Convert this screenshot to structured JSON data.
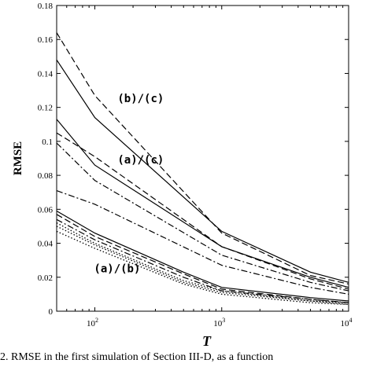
{
  "chart_data": {
    "type": "line",
    "xlabel": "T",
    "ylabel": "RMSE",
    "xscale": "log",
    "xlim": [
      50,
      10000
    ],
    "ylim": [
      0,
      0.18
    ],
    "yticks": [
      "0",
      "0.02",
      "0.04",
      "0.06",
      "0.08",
      "0.1",
      "0.12",
      "0.14",
      "0.16",
      "0.18"
    ],
    "xticks": [
      {
        "value": 100,
        "base": "10",
        "exp": "2"
      },
      {
        "value": 1000,
        "base": "10",
        "exp": "3"
      },
      {
        "value": 10000,
        "base": "10",
        "exp": "4"
      }
    ],
    "grid": false,
    "annotations": [
      {
        "text": "(b)/(c)",
        "x": 230,
        "y": 0.123
      },
      {
        "text": "(a)/(c)",
        "x": 230,
        "y": 0.087
      },
      {
        "text": "(a)/(b)",
        "x": 150,
        "y": 0.023
      }
    ],
    "series": [
      {
        "style": "solid",
        "x": [
          50,
          100,
          1000,
          5000,
          10000
        ],
        "y": [
          0.148,
          0.114,
          0.047,
          0.023,
          0.017
        ]
      },
      {
        "style": "dashed",
        "x": [
          50,
          100,
          1000,
          5000,
          10000
        ],
        "y": [
          0.164,
          0.127,
          0.046,
          0.021,
          0.016
        ]
      },
      {
        "style": "solid",
        "x": [
          50,
          100,
          1000,
          5000,
          10000
        ],
        "y": [
          0.113,
          0.086,
          0.038,
          0.02,
          0.014
        ]
      },
      {
        "style": "dashed",
        "x": [
          50,
          100,
          1000,
          5000,
          10000
        ],
        "y": [
          0.105,
          0.091,
          0.038,
          0.019,
          0.013
        ]
      },
      {
        "style": "dashdot",
        "x": [
          50,
          100,
          1000,
          5000,
          10000
        ],
        "y": [
          0.099,
          0.077,
          0.033,
          0.017,
          0.012
        ]
      },
      {
        "style": "dashdot",
        "x": [
          50,
          100,
          1000,
          5000,
          10000
        ],
        "y": [
          0.071,
          0.063,
          0.027,
          0.014,
          0.01
        ]
      },
      {
        "style": "solid",
        "x": [
          50,
          100,
          500,
          1000,
          5000,
          10000
        ],
        "y": [
          0.059,
          0.046,
          0.023,
          0.014,
          0.008,
          0.006
        ]
      },
      {
        "style": "dashed",
        "x": [
          50,
          100,
          500,
          1000,
          5000,
          10000
        ],
        "y": [
          0.057,
          0.044,
          0.022,
          0.013,
          0.007,
          0.005
        ]
      },
      {
        "style": "dashdot",
        "x": [
          50,
          100,
          500,
          1000,
          5000,
          10000
        ],
        "y": [
          0.054,
          0.042,
          0.02,
          0.012,
          0.007,
          0.005
        ]
      },
      {
        "style": "dotted",
        "x": [
          50,
          100,
          500,
          1000,
          5000,
          10000
        ],
        "y": [
          0.052,
          0.04,
          0.018,
          0.012,
          0.006,
          0.005
        ]
      },
      {
        "style": "dotted",
        "x": [
          50,
          100,
          500,
          1000,
          5000,
          10000
        ],
        "y": [
          0.05,
          0.039,
          0.017,
          0.011,
          0.006,
          0.004
        ]
      },
      {
        "style": "dotted",
        "x": [
          50,
          100,
          500,
          1000,
          5000,
          10000
        ],
        "y": [
          0.047,
          0.037,
          0.016,
          0.01,
          0.005,
          0.004
        ]
      }
    ]
  },
  "caption": "2.   RMSE in the first simulation of Section III-D, as a function"
}
